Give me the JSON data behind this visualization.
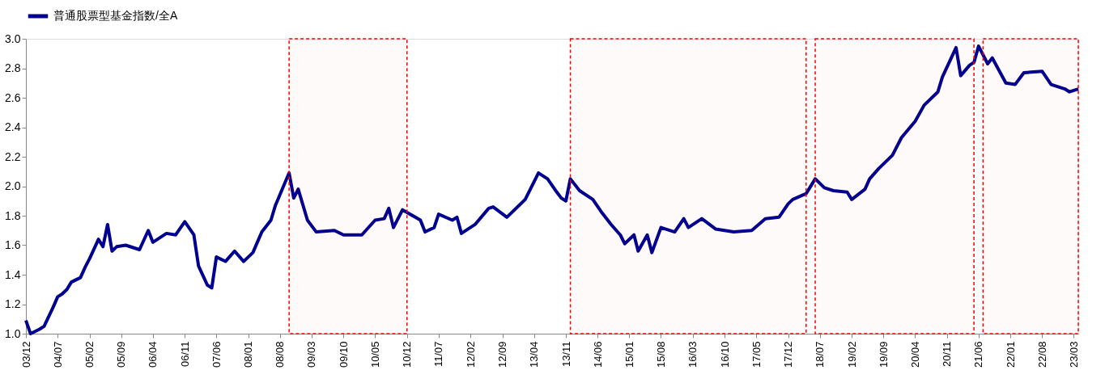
{
  "chart_data": {
    "type": "line",
    "x": [
      "2003-12",
      "2004-01",
      "2004-03",
      "2004-04",
      "2004-06",
      "2004-07",
      "2004-08",
      "2004-09",
      "2004-10",
      "2004-12",
      "2005-01",
      "2005-02",
      "2005-04",
      "2005-05",
      "2005-06",
      "2005-07",
      "2005-08",
      "2005-10",
      "2006-01",
      "2006-03",
      "2006-04",
      "2006-07",
      "2006-09",
      "2006-11",
      "2007-01",
      "2007-02",
      "2007-04",
      "2007-05",
      "2007-06",
      "2007-08",
      "2007-10",
      "2007-12",
      "2008-02",
      "2008-04",
      "2008-06",
      "2008-07",
      "2008-10",
      "2008-11",
      "2008-12",
      "2009-02",
      "2009-04",
      "2009-08",
      "2009-10",
      "2010-02",
      "2010-05",
      "2010-07",
      "2010-08",
      "2010-09",
      "2010-11",
      "2011-03",
      "2011-04",
      "2011-06",
      "2011-07",
      "2011-10",
      "2011-11",
      "2011-12",
      "2012-03",
      "2012-06",
      "2012-07",
      "2012-10",
      "2013-02",
      "2013-05",
      "2013-07",
      "2013-09",
      "2013-10",
      "2013-11",
      "2013-12",
      "2014-02",
      "2014-05",
      "2014-07",
      "2014-09",
      "2014-11",
      "2014-12",
      "2015-02",
      "2015-03",
      "2015-05",
      "2015-06",
      "2015-08",
      "2015-11",
      "2016-01",
      "2016-02",
      "2016-05",
      "2016-08",
      "2016-12",
      "2017-04",
      "2017-07",
      "2017-10",
      "2017-12",
      "2018-01",
      "2018-04",
      "2018-06",
      "2018-08",
      "2018-10",
      "2019-01",
      "2019-02",
      "2019-05",
      "2019-06",
      "2019-08",
      "2019-11",
      "2020-01",
      "2020-04",
      "2020-06",
      "2020-09",
      "2020-10",
      "2021-01",
      "2021-02",
      "2021-04",
      "2021-05",
      "2021-06",
      "2021-08",
      "2021-09",
      "2021-12",
      "2022-02",
      "2022-04",
      "2022-08",
      "2022-10",
      "2023-01",
      "2023-02",
      "2023-04"
    ],
    "series": [
      {
        "name": "普通股票型基金指数/全A",
        "color": "#000090",
        "values": [
          1.09,
          1.0,
          1.03,
          1.05,
          1.18,
          1.25,
          1.27,
          1.3,
          1.35,
          1.38,
          1.45,
          1.51,
          1.64,
          1.59,
          1.74,
          1.56,
          1.59,
          1.6,
          1.57,
          1.7,
          1.62,
          1.68,
          1.67,
          1.76,
          1.67,
          1.46,
          1.33,
          1.31,
          1.52,
          1.49,
          1.56,
          1.49,
          1.55,
          1.69,
          1.77,
          1.87,
          2.09,
          1.92,
          1.98,
          1.77,
          1.69,
          1.7,
          1.67,
          1.67,
          1.77,
          1.78,
          1.85,
          1.72,
          1.84,
          1.77,
          1.69,
          1.72,
          1.81,
          1.77,
          1.79,
          1.68,
          1.74,
          1.85,
          1.86,
          1.79,
          1.91,
          2.09,
          2.05,
          1.96,
          1.92,
          1.9,
          2.05,
          1.97,
          1.91,
          1.82,
          1.74,
          1.67,
          1.61,
          1.67,
          1.56,
          1.67,
          1.55,
          1.72,
          1.69,
          1.78,
          1.72,
          1.78,
          1.71,
          1.69,
          1.7,
          1.78,
          1.79,
          1.88,
          1.91,
          1.95,
          2.05,
          1.99,
          1.97,
          1.96,
          1.91,
          1.98,
          2.05,
          2.12,
          2.21,
          2.33,
          2.44,
          2.55,
          2.64,
          2.74,
          2.94,
          2.75,
          2.82,
          2.84,
          2.95,
          2.83,
          2.87,
          2.7,
          2.69,
          2.77,
          2.78,
          2.69,
          2.66,
          2.64,
          2.66
        ]
      }
    ],
    "xlim": [
      "2003-12",
      "2023-04"
    ],
    "xticks": [
      {
        "value": "2003-12",
        "label": "03/12"
      },
      {
        "value": "2004-07",
        "label": "04/07"
      },
      {
        "value": "2005-02",
        "label": "05/02"
      },
      {
        "value": "2005-09",
        "label": "05/09"
      },
      {
        "value": "2006-04",
        "label": "06/04"
      },
      {
        "value": "2006-11",
        "label": "06/11"
      },
      {
        "value": "2007-06",
        "label": "07/06"
      },
      {
        "value": "2008-01",
        "label": "08/01"
      },
      {
        "value": "2008-08",
        "label": "08/08"
      },
      {
        "value": "2009-03",
        "label": "09/03"
      },
      {
        "value": "2009-10",
        "label": "09/10"
      },
      {
        "value": "2010-05",
        "label": "10/05"
      },
      {
        "value": "2010-12",
        "label": "10/12"
      },
      {
        "value": "2011-07",
        "label": "11/07"
      },
      {
        "value": "2012-02",
        "label": "12/02"
      },
      {
        "value": "2012-09",
        "label": "12/09"
      },
      {
        "value": "2013-04",
        "label": "13/04"
      },
      {
        "value": "2013-11",
        "label": "13/11"
      },
      {
        "value": "2014-06",
        "label": "14/06"
      },
      {
        "value": "2015-01",
        "label": "15/01"
      },
      {
        "value": "2015-08",
        "label": "15/08"
      },
      {
        "value": "2016-03",
        "label": "16/03"
      },
      {
        "value": "2016-10",
        "label": "16/10"
      },
      {
        "value": "2017-05",
        "label": "17/05"
      },
      {
        "value": "2017-12",
        "label": "17/12"
      },
      {
        "value": "2018-07",
        "label": "18/07"
      },
      {
        "value": "2019-02",
        "label": "19/02"
      },
      {
        "value": "2019-09",
        "label": "19/09"
      },
      {
        "value": "2020-04",
        "label": "20/04"
      },
      {
        "value": "2020-11",
        "label": "20/11"
      },
      {
        "value": "2021-06",
        "label": "21/06"
      },
      {
        "value": "2022-01",
        "label": "22/01"
      },
      {
        "value": "2022-08",
        "label": "22/08"
      },
      {
        "value": "2023-03",
        "label": "23/03"
      }
    ],
    "ylim": [
      1.0,
      3.0
    ],
    "yticks": [
      {
        "value": 1.0,
        "label": "1.0"
      },
      {
        "value": 1.2,
        "label": "1.2"
      },
      {
        "value": 1.4,
        "label": "1.4"
      },
      {
        "value": 1.6,
        "label": "1.6"
      },
      {
        "value": 1.8,
        "label": "1.8"
      },
      {
        "value": 2.0,
        "label": "2.0"
      },
      {
        "value": 2.2,
        "label": "2.2"
      },
      {
        "value": 2.4,
        "label": "2.4"
      },
      {
        "value": 2.6,
        "label": "2.6"
      },
      {
        "value": 2.8,
        "label": "2.8"
      },
      {
        "value": 3.0,
        "label": "3.0"
      }
    ],
    "bands": [
      {
        "axis": "x",
        "from": "2008-10",
        "to": "2010-12",
        "color": "#ff0000"
      },
      {
        "axis": "x",
        "from": "2013-12",
        "to": "2018-04",
        "color": "#ff0000"
      },
      {
        "axis": "x",
        "from": "2018-06",
        "to": "2021-05",
        "color": "#ff0000"
      },
      {
        "axis": "x",
        "from": "2021-07",
        "to": "2023-04",
        "color": "#ff0000"
      }
    ],
    "grid": false,
    "legend": "top",
    "marker": "none",
    "line_style": "solid"
  }
}
